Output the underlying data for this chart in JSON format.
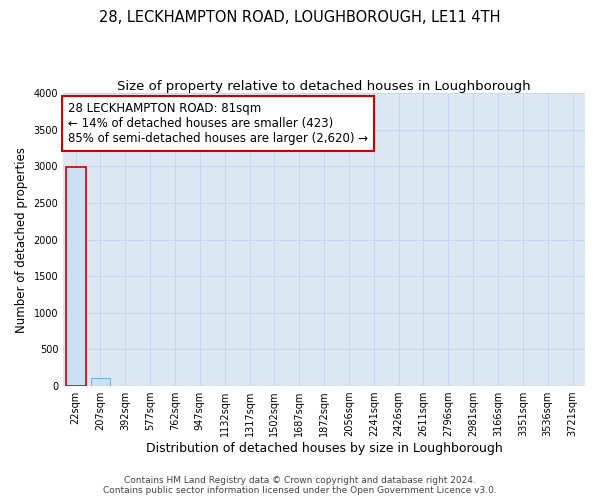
{
  "title_line1": "28, LECKHAMPTON ROAD, LOUGHBOROUGH, LE11 4TH",
  "title_line2": "Size of property relative to detached houses in Loughborough",
  "xlabel": "Distribution of detached houses by size in Loughborough",
  "ylabel": "Number of detached properties",
  "bar_labels": [
    "22sqm",
    "207sqm",
    "392sqm",
    "577sqm",
    "762sqm",
    "947sqm",
    "1132sqm",
    "1317sqm",
    "1502sqm",
    "1687sqm",
    "1872sqm",
    "2056sqm",
    "2241sqm",
    "2426sqm",
    "2611sqm",
    "2796sqm",
    "2981sqm",
    "3166sqm",
    "3351sqm",
    "3536sqm",
    "3721sqm"
  ],
  "bar_values": [
    2990,
    110,
    0,
    0,
    0,
    0,
    0,
    0,
    0,
    0,
    0,
    0,
    0,
    0,
    0,
    0,
    0,
    0,
    0,
    0,
    0
  ],
  "bar_color": "#cce0f5",
  "bar_edge_color": "#7ab0d8",
  "highlight_bar_index": 0,
  "highlight_edge_color": "#cc0000",
  "ylim": [
    0,
    4000
  ],
  "yticks": [
    0,
    500,
    1000,
    1500,
    2000,
    2500,
    3000,
    3500,
    4000
  ],
  "grid_color": "#c8d8ec",
  "bg_color": "#dde8f5",
  "annotation_line1": "28 LECKHAMPTON ROAD: 81sqm",
  "annotation_line2": "← 14% of detached houses are smaller (423)",
  "annotation_line3": "85% of semi-detached houses are larger (2,620) →",
  "annotation_box_color": "#cc0000",
  "footer_line1": "Contains HM Land Registry data © Crown copyright and database right 2024.",
  "footer_line2": "Contains public sector information licensed under the Open Government Licence v3.0.",
  "title_fontsize": 10.5,
  "subtitle_fontsize": 9.5,
  "xlabel_fontsize": 9,
  "ylabel_fontsize": 8.5,
  "tick_fontsize": 7,
  "annotation_fontsize": 8.5,
  "footer_fontsize": 6.5
}
